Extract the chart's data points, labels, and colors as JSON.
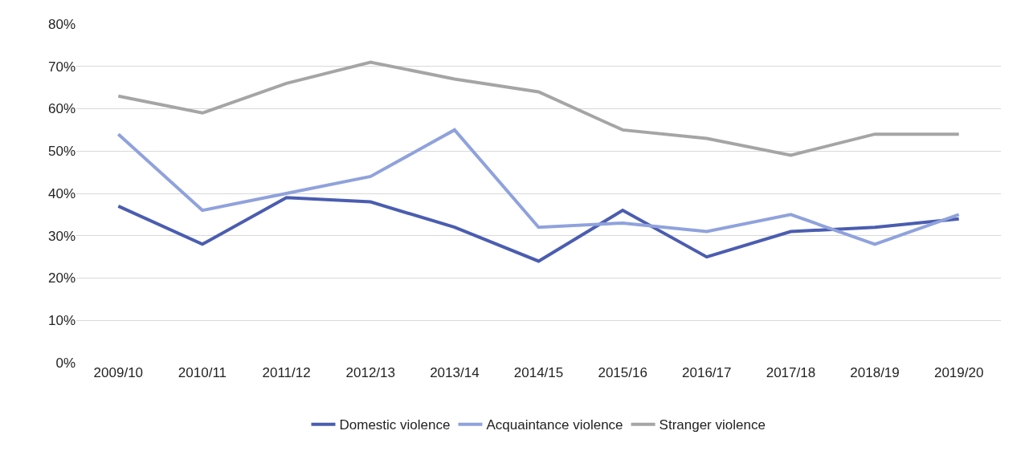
{
  "chart_data": {
    "type": "line",
    "categories": [
      "2009/10",
      "2010/11",
      "2011/12",
      "2012/13",
      "2013/14",
      "2014/15",
      "2015/16",
      "2016/17",
      "2017/18",
      "2018/19",
      "2019/20"
    ],
    "series": [
      {
        "name": "Domestic violence",
        "color": "#4a5db0",
        "values": [
          37,
          28,
          39,
          38,
          32,
          24,
          36,
          25,
          31,
          32,
          34
        ]
      },
      {
        "name": "Acquaintance violence",
        "color": "#8fa2dc",
        "values": [
          54,
          36,
          40,
          44,
          55,
          32,
          33,
          31,
          35,
          28,
          35
        ]
      },
      {
        "name": "Stranger violence",
        "color": "#a5a5a5",
        "values": [
          63,
          59,
          66,
          71,
          67,
          64,
          55,
          53,
          49,
          54,
          54
        ]
      }
    ],
    "ylim": [
      0,
      80
    ],
    "yticks": [
      {
        "value": 0,
        "label": "0%"
      },
      {
        "value": 10,
        "label": "10%"
      },
      {
        "value": 20,
        "label": "20%"
      },
      {
        "value": 30,
        "label": "30%"
      },
      {
        "value": 40,
        "label": "40%"
      },
      {
        "value": 50,
        "label": "50%"
      },
      {
        "value": 60,
        "label": "60%"
      },
      {
        "value": 70,
        "label": "70%"
      },
      {
        "value": 80,
        "label": "80%"
      }
    ],
    "grid": "y",
    "legend": "bottom",
    "marker": "none",
    "line_style": "solid"
  }
}
